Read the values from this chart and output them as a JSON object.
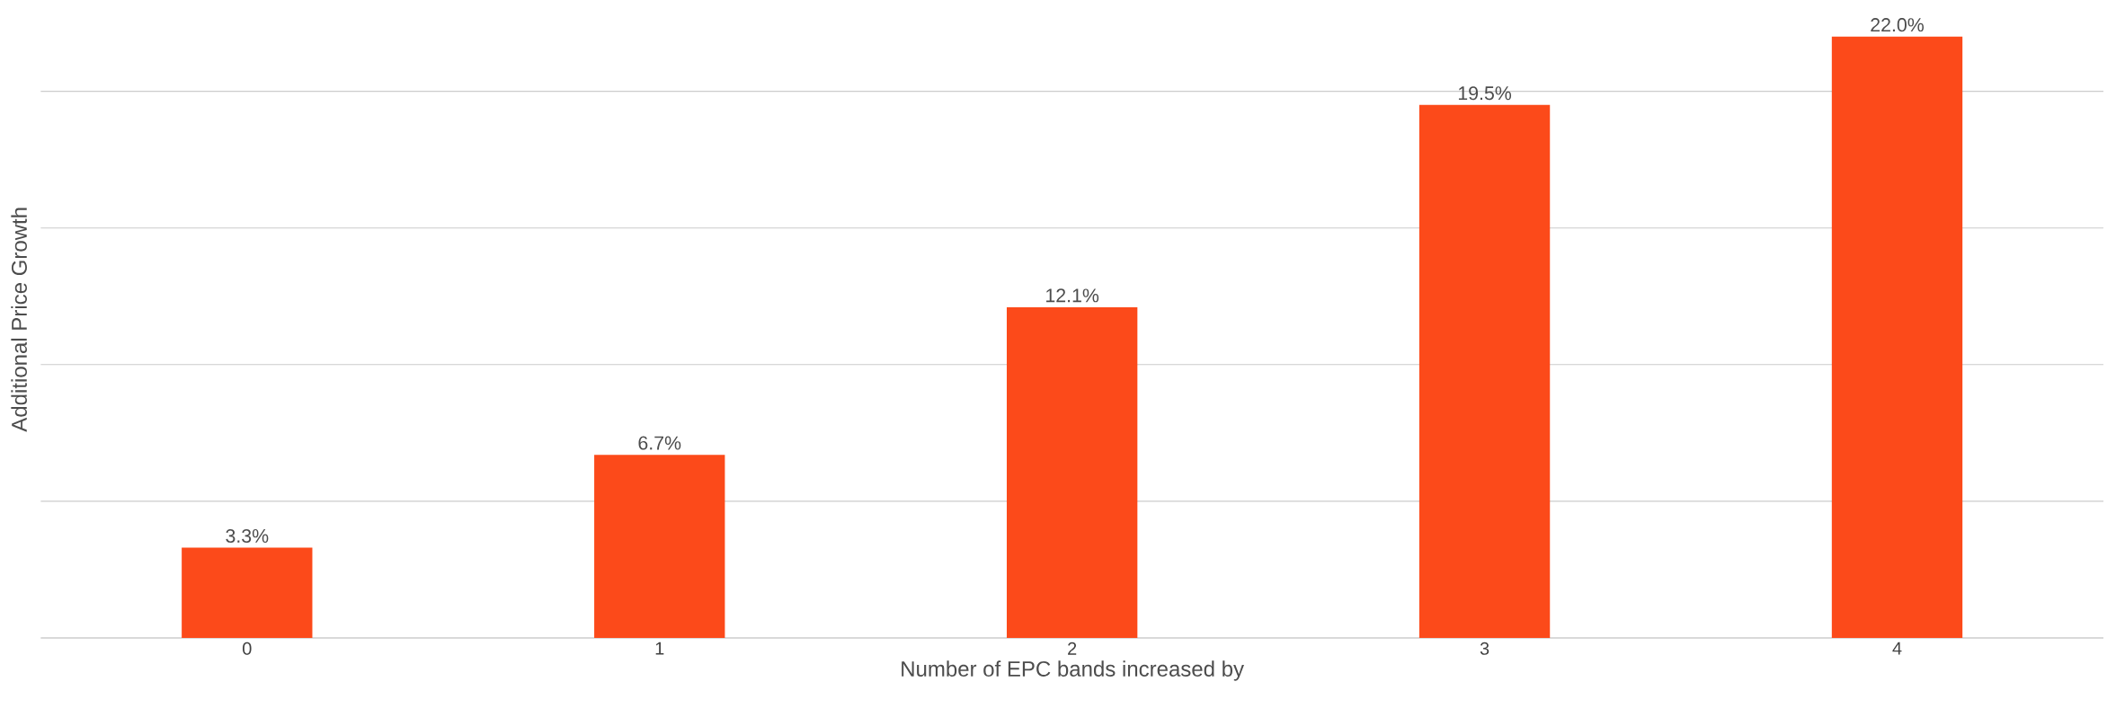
{
  "chart_data": {
    "type": "bar",
    "xlabel": "Number of EPC bands increased by",
    "ylabel": "Additional Price Growth",
    "categories": [
      "0",
      "1",
      "2",
      "3",
      "4"
    ],
    "values": [
      3.3,
      6.7,
      12.1,
      19.5,
      22.0
    ],
    "value_labels": [
      "3.3%",
      "6.7%",
      "12.1%",
      "19.5%",
      "22.0%"
    ],
    "color": "#fc4a1a",
    "yticks": [
      {
        "value": 5,
        "label": null
      },
      {
        "value": 10,
        "label": null
      },
      {
        "value": 15,
        "label": null
      },
      {
        "value": 20,
        "label": null
      }
    ],
    "grid": "y"
  }
}
